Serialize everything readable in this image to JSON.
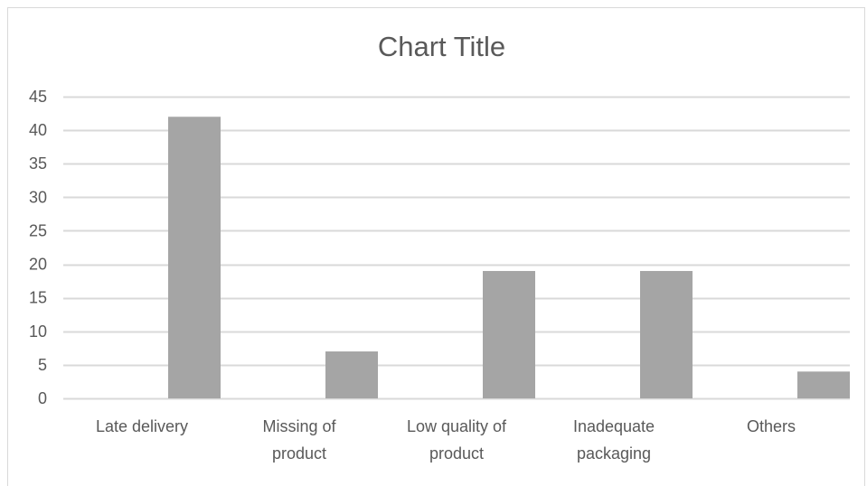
{
  "chart_data": {
    "type": "bar",
    "title": "Chart Title",
    "categories": [
      [
        "Late delivery"
      ],
      [
        "Missing of",
        "product"
      ],
      [
        "Low quality of",
        "product"
      ],
      [
        "Inadequate",
        "packaging"
      ],
      [
        "Others"
      ]
    ],
    "values": [
      42,
      7,
      19,
      19,
      4
    ],
    "ylim": [
      0,
      45
    ],
    "yticks": [
      0,
      5,
      10,
      15,
      20,
      25,
      30,
      35,
      40,
      45
    ],
    "grid": true,
    "legend": "none",
    "colors": {
      "bar": "#a5a5a5",
      "grid": "#d9d9d9",
      "text": "#595959"
    }
  }
}
